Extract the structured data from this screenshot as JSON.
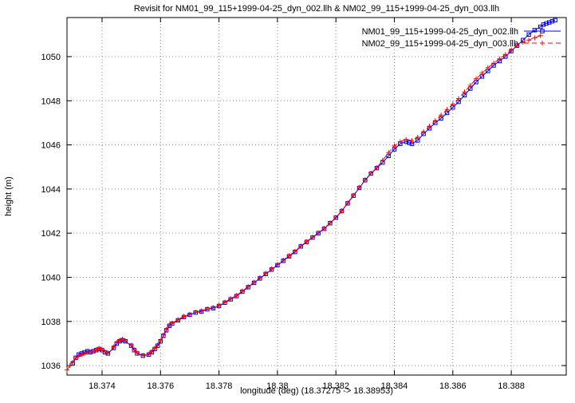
{
  "chart_data": {
    "type": "line",
    "title": "Revisit for NM01_99_115+1999-04-25_dyn_002.llh & NM02_99_115+1999-04-25_dyn_003.llh",
    "xlabel": "longitude (deg) (18.37275 -> 18.38953)",
    "ylabel": "height (m)",
    "xlim": [
      18.3728,
      18.38988
    ],
    "ylim": [
      1035.57,
      1051.77
    ],
    "grid": true,
    "legend_position": "top-right",
    "xticks": [
      18.374,
      18.376,
      18.378,
      18.38,
      18.382,
      18.384,
      18.386,
      18.388
    ],
    "xtick_labels": [
      "18.374",
      "18.376",
      "18.378",
      "18.38",
      "18.382",
      "18.384",
      "18.386",
      "18.388"
    ],
    "yticks": [
      1036,
      1038,
      1040,
      1042,
      1044,
      1046,
      1048,
      1050
    ],
    "ytick_labels": [
      "1036",
      "1038",
      "1040",
      "1042",
      "1044",
      "1046",
      "1048",
      "1050"
    ],
    "series": [
      {
        "name": "NM01_99_115+1999-04-25_dyn_002.llh",
        "color": "#0000ee",
        "marker": "square",
        "line": "solid",
        "points": [
          [
            18.373,
            1036.1
          ],
          [
            18.3731,
            1036.35
          ],
          [
            18.3732,
            1036.5
          ],
          [
            18.3733,
            1036.55
          ],
          [
            18.3734,
            1036.6
          ],
          [
            18.3735,
            1036.65
          ],
          [
            18.3736,
            1036.6
          ],
          [
            18.3737,
            1036.65
          ],
          [
            18.3738,
            1036.7
          ],
          [
            18.3739,
            1036.75
          ],
          [
            18.374,
            1036.7
          ],
          [
            18.3741,
            1036.6
          ],
          [
            18.3742,
            1036.55
          ],
          [
            18.3744,
            1036.8
          ],
          [
            18.3745,
            1037.0
          ],
          [
            18.3746,
            1037.1
          ],
          [
            18.3747,
            1037.15
          ],
          [
            18.3748,
            1037.1
          ],
          [
            18.375,
            1036.9
          ],
          [
            18.3751,
            1036.7
          ],
          [
            18.3752,
            1036.55
          ],
          [
            18.3754,
            1036.45
          ],
          [
            18.3756,
            1036.5
          ],
          [
            18.3757,
            1036.6
          ],
          [
            18.3758,
            1036.75
          ],
          [
            18.3759,
            1036.9
          ],
          [
            18.376,
            1037.1
          ],
          [
            18.3761,
            1037.35
          ],
          [
            18.3762,
            1037.6
          ],
          [
            18.3763,
            1037.8
          ],
          [
            18.3764,
            1037.9
          ],
          [
            18.3766,
            1038.05
          ],
          [
            18.3768,
            1038.2
          ],
          [
            18.377,
            1038.3
          ],
          [
            18.3772,
            1038.4
          ],
          [
            18.3774,
            1038.45
          ],
          [
            18.3776,
            1038.55
          ],
          [
            18.3778,
            1038.6
          ],
          [
            18.378,
            1038.7
          ],
          [
            18.3782,
            1038.85
          ],
          [
            18.3784,
            1039.0
          ],
          [
            18.3786,
            1039.15
          ],
          [
            18.3788,
            1039.35
          ],
          [
            18.379,
            1039.55
          ],
          [
            18.3792,
            1039.75
          ],
          [
            18.3794,
            1039.95
          ],
          [
            18.3796,
            1040.15
          ],
          [
            18.3798,
            1040.35
          ],
          [
            18.38,
            1040.55
          ],
          [
            18.3802,
            1040.75
          ],
          [
            18.3804,
            1040.95
          ],
          [
            18.3806,
            1041.15
          ],
          [
            18.3808,
            1041.4
          ],
          [
            18.381,
            1041.6
          ],
          [
            18.3812,
            1041.8
          ],
          [
            18.3814,
            1042.0
          ],
          [
            18.3816,
            1042.2
          ],
          [
            18.3818,
            1042.45
          ],
          [
            18.382,
            1042.7
          ],
          [
            18.3822,
            1043.0
          ],
          [
            18.3824,
            1043.35
          ],
          [
            18.3826,
            1043.7
          ],
          [
            18.3828,
            1044.05
          ],
          [
            18.383,
            1044.4
          ],
          [
            18.3832,
            1044.7
          ],
          [
            18.3834,
            1044.95
          ],
          [
            18.3836,
            1045.2
          ],
          [
            18.3838,
            1045.5
          ],
          [
            18.384,
            1045.8
          ],
          [
            18.3842,
            1046.05
          ],
          [
            18.3844,
            1046.15
          ],
          [
            18.3845,
            1046.1
          ],
          [
            18.3846,
            1046.05
          ],
          [
            18.3848,
            1046.2
          ],
          [
            18.385,
            1046.5
          ],
          [
            18.3852,
            1046.75
          ],
          [
            18.3854,
            1047.0
          ],
          [
            18.3856,
            1047.2
          ],
          [
            18.3858,
            1047.45
          ],
          [
            18.386,
            1047.7
          ],
          [
            18.3862,
            1047.95
          ],
          [
            18.3864,
            1048.25
          ],
          [
            18.3866,
            1048.55
          ],
          [
            18.3868,
            1048.85
          ],
          [
            18.387,
            1049.1
          ],
          [
            18.3872,
            1049.35
          ],
          [
            18.3874,
            1049.6
          ],
          [
            18.3876,
            1049.8
          ],
          [
            18.3878,
            1050.0
          ],
          [
            18.388,
            1050.25
          ],
          [
            18.3882,
            1050.5
          ],
          [
            18.3884,
            1050.75
          ],
          [
            18.3886,
            1051.0
          ],
          [
            18.3888,
            1051.2
          ],
          [
            18.389,
            1051.35
          ],
          [
            18.3891,
            1051.45
          ],
          [
            18.3892,
            1051.5
          ],
          [
            18.3893,
            1051.55
          ],
          [
            18.3894,
            1051.6
          ],
          [
            18.3895,
            1051.65
          ]
        ]
      },
      {
        "name": "NM02_99_115+1999-04-25_dyn_003.llh",
        "color": "#ff0000",
        "marker": "plus",
        "line": "dashed",
        "points": [
          [
            18.3728,
            1035.8
          ],
          [
            18.3729,
            1036.0
          ],
          [
            18.373,
            1036.15
          ],
          [
            18.3731,
            1036.35
          ],
          [
            18.3732,
            1036.45
          ],
          [
            18.3733,
            1036.5
          ],
          [
            18.3734,
            1036.55
          ],
          [
            18.3735,
            1036.6
          ],
          [
            18.3736,
            1036.62
          ],
          [
            18.3737,
            1036.66
          ],
          [
            18.3738,
            1036.72
          ],
          [
            18.3739,
            1036.78
          ],
          [
            18.374,
            1036.72
          ],
          [
            18.3741,
            1036.62
          ],
          [
            18.3742,
            1036.57
          ],
          [
            18.3744,
            1036.85
          ],
          [
            18.3745,
            1037.05
          ],
          [
            18.3746,
            1037.15
          ],
          [
            18.3747,
            1037.2
          ],
          [
            18.3748,
            1037.12
          ],
          [
            18.375,
            1036.92
          ],
          [
            18.3751,
            1036.72
          ],
          [
            18.3752,
            1036.57
          ],
          [
            18.3754,
            1036.47
          ],
          [
            18.3756,
            1036.52
          ],
          [
            18.3757,
            1036.63
          ],
          [
            18.3758,
            1036.78
          ],
          [
            18.3759,
            1036.93
          ],
          [
            18.376,
            1037.13
          ],
          [
            18.3761,
            1037.38
          ],
          [
            18.3762,
            1037.63
          ],
          [
            18.3763,
            1037.83
          ],
          [
            18.3764,
            1037.93
          ],
          [
            18.3766,
            1038.08
          ],
          [
            18.3768,
            1038.23
          ],
          [
            18.377,
            1038.33
          ],
          [
            18.3772,
            1038.42
          ],
          [
            18.3774,
            1038.48
          ],
          [
            18.3776,
            1038.57
          ],
          [
            18.3778,
            1038.63
          ],
          [
            18.378,
            1038.73
          ],
          [
            18.3782,
            1038.88
          ],
          [
            18.3784,
            1039.03
          ],
          [
            18.3786,
            1039.18
          ],
          [
            18.3788,
            1039.38
          ],
          [
            18.379,
            1039.58
          ],
          [
            18.3792,
            1039.78
          ],
          [
            18.3794,
            1039.98
          ],
          [
            18.3796,
            1040.18
          ],
          [
            18.3798,
            1040.38
          ],
          [
            18.38,
            1040.58
          ],
          [
            18.3802,
            1040.78
          ],
          [
            18.3804,
            1040.98
          ],
          [
            18.3806,
            1041.18
          ],
          [
            18.3808,
            1041.42
          ],
          [
            18.381,
            1041.62
          ],
          [
            18.3812,
            1041.82
          ],
          [
            18.3814,
            1042.02
          ],
          [
            18.3816,
            1042.22
          ],
          [
            18.3818,
            1042.47
          ],
          [
            18.382,
            1042.72
          ],
          [
            18.3822,
            1043.02
          ],
          [
            18.3824,
            1043.37
          ],
          [
            18.3826,
            1043.72
          ],
          [
            18.3828,
            1044.07
          ],
          [
            18.383,
            1044.42
          ],
          [
            18.3832,
            1044.72
          ],
          [
            18.3834,
            1044.97
          ],
          [
            18.3836,
            1045.3
          ],
          [
            18.3838,
            1045.65
          ],
          [
            18.384,
            1045.95
          ],
          [
            18.3842,
            1046.15
          ],
          [
            18.3844,
            1046.25
          ],
          [
            18.3846,
            1046.2
          ],
          [
            18.3848,
            1046.35
          ],
          [
            18.385,
            1046.6
          ],
          [
            18.3852,
            1046.85
          ],
          [
            18.3854,
            1047.1
          ],
          [
            18.3856,
            1047.35
          ],
          [
            18.3858,
            1047.6
          ],
          [
            18.386,
            1047.85
          ],
          [
            18.3862,
            1048.1
          ],
          [
            18.3864,
            1048.4
          ],
          [
            18.3866,
            1048.7
          ],
          [
            18.3868,
            1049.0
          ],
          [
            18.387,
            1049.25
          ],
          [
            18.3872,
            1049.5
          ],
          [
            18.3874,
            1049.7
          ],
          [
            18.3876,
            1049.9
          ],
          [
            18.3878,
            1050.1
          ],
          [
            18.388,
            1050.3
          ],
          [
            18.3882,
            1050.5
          ],
          [
            18.3884,
            1050.65
          ],
          [
            18.3886,
            1050.75
          ],
          [
            18.3888,
            1050.85
          ],
          [
            18.389,
            1050.95
          ]
        ]
      }
    ]
  }
}
